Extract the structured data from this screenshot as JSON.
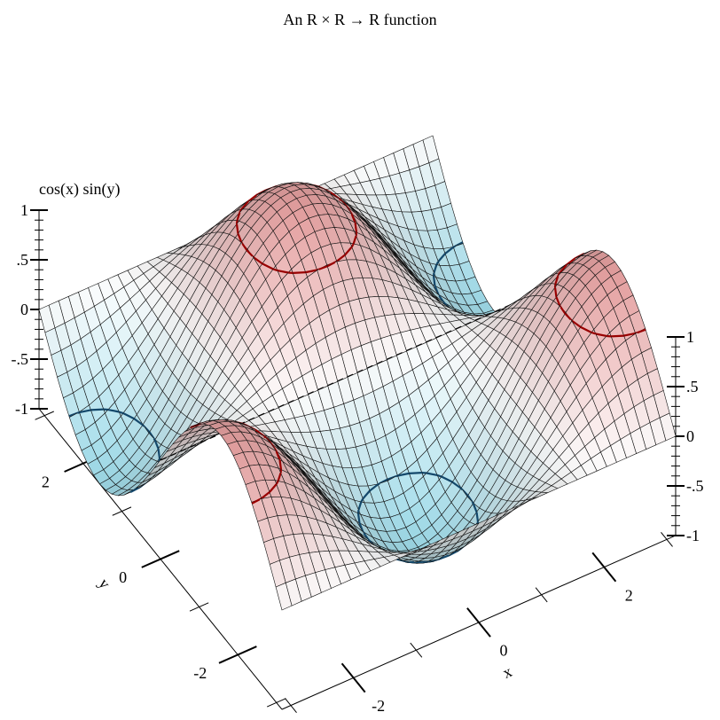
{
  "chart_data": {
    "type": "surface3d",
    "title": "An R × R → R function",
    "function": "cos(x) sin(y)",
    "xlabel": "x",
    "ylabel": "y",
    "zlabel": "cos(x) sin(y)",
    "xlim": [
      -3.14159,
      3.14159
    ],
    "ylim": [
      -3.14159,
      3.14159
    ],
    "zlim": [
      -1,
      1
    ],
    "samples": 41,
    "x_ticks": [
      {
        "value": -2,
        "label": "-2"
      },
      {
        "value": 0,
        "label": "0"
      },
      {
        "value": 2,
        "label": "2"
      }
    ],
    "y_ticks": [
      {
        "value": -2,
        "label": "-2"
      },
      {
        "value": 0,
        "label": "0"
      },
      {
        "value": 2,
        "label": "2"
      }
    ],
    "z_ticks": [
      {
        "value": 1,
        "label": "1"
      },
      {
        "value": 0.5,
        "label": ".5"
      },
      {
        "value": 0,
        "label": "0"
      },
      {
        "value": -0.5,
        "label": "-.5"
      },
      {
        "value": -1,
        "label": "-1"
      }
    ],
    "contour_levels": [
      0.7,
      0,
      -0.7
    ],
    "colors": {
      "positive": "#e6a0a0",
      "negative": "#a0dcea",
      "contour_positive": "#990000",
      "contour_negative": "#14486b",
      "contour_zero": "#000000"
    },
    "grid": false
  }
}
